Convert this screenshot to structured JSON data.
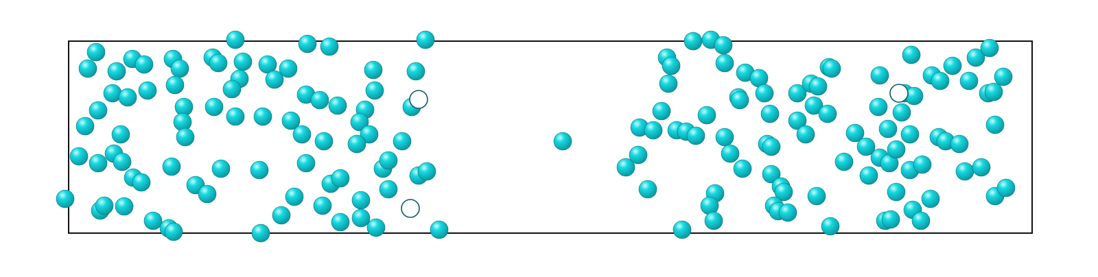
{
  "colors": {
    "background": "#ffffff",
    "box_border": "#111111",
    "particle_fill": "#17d8e0",
    "particle_highlight": "#c9fdff",
    "particle_edge": "#0a6f78",
    "hollow_edge": "#0a5a62"
  },
  "particles": {
    "total_count": 185,
    "hollow_count": 3,
    "left_cluster": "dense",
    "middle_region": "sparse",
    "right_cluster": "dense"
  }
}
